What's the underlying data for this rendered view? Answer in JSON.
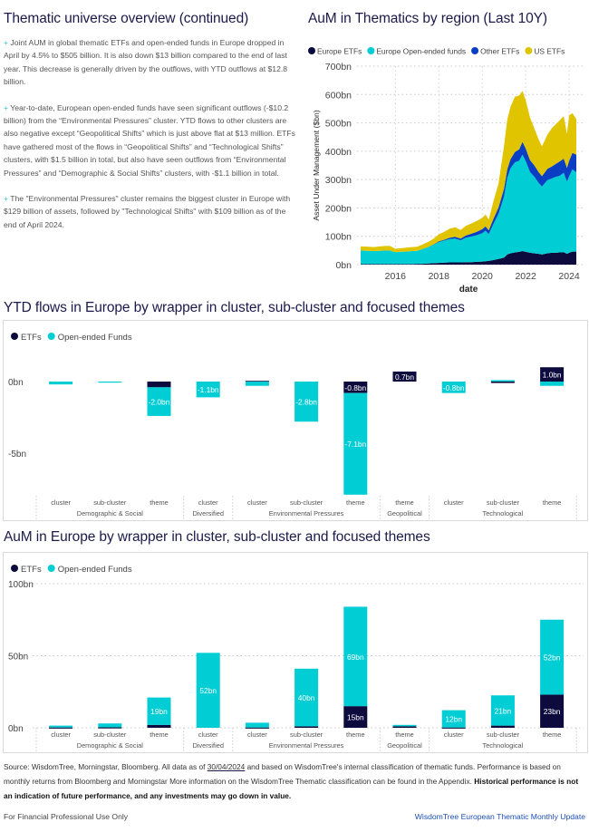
{
  "left": {
    "title": "Thematic universe overview (continued)",
    "bullet_marker": "+",
    "paragraphs": [
      "Joint AUM in global thematic ETFs and open-ended funds in Europe dropped in April by 4.5% to $505 billion. It is also down $13 billion compared to the end of last year. This decrease is generally driven by the outflows, with YTD outflows at $12.8 billion.",
      "Year-to-date, European open-ended funds have seen significant outflows (-$10.2 billion) from the “Environmental Pressures” cluster. YTD flows to other clusters are also negative except “Geopolitical Shifts” which is just above flat at $13 million. ETFs have gathered most of the flows in “Geopolitical Shifts” and “Technological Shifts” clusters, with $1.5 billion in total, but also have seen outflows from “Environmental Pressures” and “Demographic & Social Shifts” clusters, with -$1.1 billion in total.",
      "The \"Environmental Pressures\" cluster remains the biggest cluster in Europe with $129 billion of assets, followed by \"Technological Shifts\" with $109 billion as of the end of April 2024."
    ]
  },
  "colors": {
    "etf": "#0d0b3e",
    "oef": "#00cdd4",
    "other_etf": "#0a3fc4",
    "us_etf": "#e0c400",
    "title": "#1b1a4a",
    "link": "#1d4fb4"
  },
  "chart_data": [
    {
      "id": "aum-region",
      "type": "area",
      "stacked": true,
      "title": "AuM in Thematics by region (Last 10Y)",
      "xlabel": "date",
      "ylabel": "Asset Under Management ($bn)",
      "xlim": [
        2014.4,
        2024.33
      ],
      "ylim": [
        0,
        700
      ],
      "x_ticks": [
        2016,
        2018,
        2020,
        2022,
        2024
      ],
      "y_ticks": [
        0,
        100,
        200,
        300,
        400,
        500,
        600,
        700
      ],
      "y_tick_labels": [
        "0bn",
        "100bn",
        "200bn",
        "300bn",
        "400bn",
        "500bn",
        "600bn",
        "700bn"
      ],
      "grid": true,
      "legend_position": "top-left",
      "x": [
        2014.4,
        2014.75,
        2015.0,
        2015.25,
        2015.5,
        2015.75,
        2016.0,
        2016.25,
        2016.5,
        2016.75,
        2017.0,
        2017.25,
        2017.5,
        2017.75,
        2018.0,
        2018.25,
        2018.5,
        2018.75,
        2019.0,
        2019.25,
        2019.5,
        2019.75,
        2020.0,
        2020.15,
        2020.3,
        2020.5,
        2020.75,
        2021.0,
        2021.15,
        2021.3,
        2021.5,
        2021.7,
        2021.85,
        2022.0,
        2022.2,
        2022.4,
        2022.6,
        2022.75,
        2023.0,
        2023.2,
        2023.4,
        2023.55,
        2023.75,
        2023.9,
        2024.0,
        2024.15,
        2024.33
      ],
      "series": [
        {
          "name": "Europe ETFs",
          "values": [
            2,
            2,
            2,
            2,
            2,
            2,
            2,
            2,
            2,
            2,
            3,
            3,
            4,
            5,
            6,
            7,
            8,
            8,
            8,
            9,
            9,
            10,
            11,
            12,
            13,
            16,
            20,
            25,
            36,
            40,
            43,
            45,
            48,
            45,
            42,
            40,
            38,
            36,
            40,
            42,
            42,
            43,
            44,
            38,
            42,
            46,
            46
          ]
        },
        {
          "name": "Europe Open-ended funds",
          "values": [
            48,
            47,
            46,
            47,
            48,
            48,
            42,
            44,
            44,
            46,
            46,
            52,
            58,
            65,
            74,
            78,
            82,
            84,
            78,
            86,
            90,
            94,
            100,
            108,
            95,
            125,
            160,
            215,
            270,
            300,
            318,
            322,
            340,
            320,
            285,
            270,
            250,
            240,
            258,
            262,
            268,
            270,
            280,
            255,
            270,
            290,
            280
          ]
        },
        {
          "name": "Other ETFs",
          "values": [
            0,
            0,
            0,
            0,
            0,
            0,
            0,
            0,
            0,
            0,
            0,
            0,
            0,
            1,
            2,
            3,
            5,
            6,
            6,
            8,
            10,
            12,
            14,
            15,
            13,
            18,
            22,
            28,
            30,
            32,
            36,
            40,
            45,
            44,
            42,
            40,
            38,
            36,
            40,
            42,
            46,
            50,
            50,
            48,
            55,
            58,
            62
          ]
        },
        {
          "name": "US ETFs",
          "values": [
            15,
            14,
            14,
            15,
            16,
            16,
            12,
            12,
            14,
            14,
            14,
            16,
            18,
            20,
            25,
            28,
            32,
            34,
            30,
            34,
            36,
            38,
            40,
            42,
            38,
            60,
            85,
            150,
            175,
            185,
            195,
            190,
            180,
            170,
            150,
            130,
            115,
            105,
            120,
            135,
            140,
            145,
            150,
            120,
            160,
            140,
            125
          ]
        }
      ]
    },
    {
      "id": "ytd-flows",
      "type": "bar",
      "stacked": true,
      "title": "YTD flows in Europe by wrapper in cluster, sub-cluster and focused themes",
      "ylim": [
        -8.2,
        0.9
      ],
      "y_ticks": [
        0,
        -5
      ],
      "y_tick_labels": [
        "0bn",
        "-5bn"
      ],
      "legend_position": "top-left",
      "categories": [
        "cluster",
        "sub-cluster",
        "theme",
        "cluster",
        "cluster",
        "sub-cluster",
        "theme",
        "theme",
        "cluster",
        "sub-cluster",
        "theme"
      ],
      "groups": [
        {
          "name": "Demographic & Social",
          "count": 3
        },
        {
          "name": "Diversified",
          "count": 1
        },
        {
          "name": "Environmental Pressures",
          "count": 3
        },
        {
          "name": "Geopolitical",
          "count": 1
        },
        {
          "name": "Technological",
          "count": 3
        }
      ],
      "series": [
        {
          "name": "ETFs",
          "values": [
            0.0,
            0.0,
            -0.4,
            0.0,
            0.05,
            0.0,
            -0.8,
            0.7,
            0.0,
            -0.1,
            1.0
          ],
          "labels": [
            "",
            "",
            "",
            "",
            "",
            "",
            "-0.8bn",
            "0.7bn",
            "",
            "",
            "1.0bn"
          ]
        },
        {
          "name": "Open-ended Funds",
          "values": [
            -0.2,
            -0.05,
            -2.0,
            -1.1,
            -0.3,
            -2.8,
            -7.1,
            0.0,
            -0.8,
            0.1,
            -0.3
          ],
          "labels": [
            "",
            "",
            "-2.0bn",
            "-1.1bn",
            "",
            "-2.8bn",
            "-7.1bn",
            "",
            "-0.8bn",
            "",
            ""
          ]
        }
      ]
    },
    {
      "id": "aum-europe",
      "type": "bar",
      "stacked": true,
      "title": "AuM in Europe by wrapper in cluster, sub-cluster and focused themes",
      "ylim": [
        0,
        100
      ],
      "y_ticks": [
        0,
        50,
        100
      ],
      "y_tick_labels": [
        "0bn",
        "50bn",
        "100bn"
      ],
      "grid": true,
      "legend_position": "top-left",
      "categories": [
        "cluster",
        "sub-cluster",
        "theme",
        "cluster",
        "cluster",
        "sub-cluster",
        "theme",
        "theme",
        "cluster",
        "sub-cluster",
        "theme"
      ],
      "groups": [
        {
          "name": "Demographic & Social",
          "count": 3
        },
        {
          "name": "Diversified",
          "count": 1
        },
        {
          "name": "Environmental Pressures",
          "count": 3
        },
        {
          "name": "Geopolitical",
          "count": 1
        },
        {
          "name": "Technological",
          "count": 3
        }
      ],
      "series": [
        {
          "name": "ETFs",
          "values": [
            0.2,
            0.3,
            2.0,
            0.0,
            0.2,
            1.0,
            15,
            1.0,
            0.2,
            1.5,
            23
          ],
          "labels": [
            "",
            "",
            "",
            "",
            "",
            "",
            "15bn",
            "",
            "",
            "",
            "23bn"
          ]
        },
        {
          "name": "Open-ended Funds",
          "values": [
            1.3,
            2.7,
            19,
            52,
            3.3,
            40,
            69,
            1.0,
            12,
            21,
            52
          ],
          "labels": [
            "",
            "",
            "19bn",
            "52bn",
            "",
            "40bn",
            "69bn",
            "",
            "12bn",
            "21bn",
            "52bn"
          ]
        }
      ]
    }
  ],
  "footer": {
    "source_prefix": "Source: WisdomTree, Morningstar, Bloomberg. All data as of ",
    "source_date": "30/04/2024",
    "source_suffix": " and based on WisdomTree's internal classification of thematic funds. Performance is based on monthly returns from Bloomberg and Morningstar More information on the WisdomTree Thematic classification can be found in the Appendix. ",
    "disclaimer_bold": "Historical performance is not an indication of future performance, and any investments may go down in value.",
    "use_notice": "For Financial Professional Use Only",
    "publication": "WisdomTree European Thematic Monthly Update"
  }
}
